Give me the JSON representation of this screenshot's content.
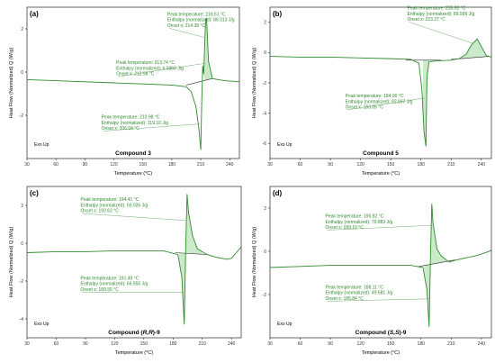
{
  "colors": {
    "curve": "#2e8b2e",
    "fill": "#b8e3b8",
    "baseline": "#2a2a2a",
    "annotation": "#2e8b2e"
  },
  "chart_data": [
    {
      "type": "line",
      "panel": "(a)",
      "compound_text": "Compound 3",
      "exo_label": "Exo Up",
      "xlabel": "Temperature   (°C)",
      "ylabel": "Heat Flow (Normalized) Q (W/g)",
      "xlim": [
        30,
        250
      ],
      "ylim": [
        -4,
        3
      ],
      "x_ticks": [
        "30",
        "60",
        "90",
        "120",
        "150",
        "180",
        "210",
        "240"
      ],
      "y_ticks": [
        "2",
        "0",
        "-2"
      ],
      "series": [
        {
          "x": [
            30,
            60,
            90,
            120,
            150,
            180,
            195,
            200,
            205,
            208,
            210,
            211,
            212,
            213,
            214,
            215,
            216,
            218,
            222,
            228,
            235,
            240,
            245,
            250
          ],
          "y": [
            -0.35,
            -0.4,
            -0.45,
            -0.5,
            -0.55,
            -0.6,
            -0.68,
            -0.9,
            -1.6,
            -2.6,
            -3.6,
            -1.4,
            0.3,
            -0.1,
            1.2,
            2.4,
            2.5,
            0.5,
            -0.3,
            -0.35,
            -0.4,
            -0.42,
            -0.43,
            -0.45
          ]
        }
      ],
      "annotations": [
        {
          "lines": [
            "Peak temperature: 216.51 °C",
            "Enthalpy (normalized): 86.313 J/g",
            "Onset x: 214.38 °C"
          ]
        },
        {
          "lines": [
            "Peak temperature: 213.74 °C",
            "Enthalpy (normalized): 6.5960 J/g",
            "Onset x: 212.58 °C"
          ]
        },
        {
          "lines": [
            "Peak temperature: 210.98 °C",
            "Enthalpy (normalized): 119.10 J/g",
            "Onset x: 206.04 °C"
          ]
        }
      ]
    },
    {
      "type": "line",
      "panel": "(b)",
      "compound_text": "Compound 5",
      "exo_label": "Exo Up",
      "xlabel": "Temperature   (°C)",
      "ylabel": "Heat Flow (Normalized) Q (W/g)",
      "xlim": [
        30,
        250
      ],
      "ylim": [
        -7,
        3
      ],
      "x_ticks": [
        "30",
        "60",
        "90",
        "120",
        "150",
        "180",
        "210",
        "240"
      ],
      "y_ticks": [
        "2",
        "0",
        "-2",
        "-4",
        "-6"
      ],
      "series": [
        {
          "x": [
            30,
            60,
            90,
            120,
            150,
            170,
            178,
            181,
            183,
            184.9,
            186,
            188,
            195,
            210,
            218,
            225,
            230,
            235.9,
            240,
            245,
            250
          ],
          "y": [
            -0.25,
            -0.3,
            -0.3,
            -0.35,
            -0.4,
            -0.45,
            -0.7,
            -2.5,
            -5.2,
            -6.2,
            -1.6,
            -0.6,
            -0.55,
            -0.5,
            -0.4,
            -0.1,
            0.5,
            0.9,
            0.4,
            -0.2,
            -0.3
          ]
        }
      ],
      "annotations": [
        {
          "lines": [
            "Peak temperature: 235.92 °C",
            "Enthalpy (normalized): 89.599 J/g",
            "Onset x: 223.27 °C"
          ]
        },
        {
          "lines": [
            "Peak temperature: 184.90 °C",
            "Enthalpy (normalized): 92.937 J/g",
            "Onset x: 183.05 °C"
          ]
        }
      ]
    },
    {
      "type": "line",
      "panel": "(c)",
      "compound_text": [
        "Compound (",
        "R,R",
        ")-9"
      ],
      "exo_label": "Exo Up",
      "xlabel": "Temperature   (°C)",
      "ylabel": "Heat Flow (Normalized) Q (W/g)",
      "xlim": [
        30,
        250
      ],
      "ylim": [
        -5,
        3
      ],
      "x_ticks": [
        "30",
        "60",
        "90",
        "120",
        "150",
        "180",
        "210",
        "240"
      ],
      "y_ticks": [
        "2",
        "0",
        "-2",
        "-4"
      ],
      "series": [
        {
          "x": [
            30,
            60,
            90,
            120,
            150,
            170,
            185,
            189,
            191.5,
            193,
            194.4,
            196,
            200,
            205,
            215,
            225,
            235,
            240,
            245,
            250
          ],
          "y": [
            -0.5,
            -0.45,
            -0.45,
            -0.4,
            -0.4,
            -0.4,
            -0.6,
            -1.8,
            -4.3,
            -0.3,
            2.6,
            1.6,
            0.4,
            -0.3,
            -0.6,
            -0.75,
            -0.85,
            -0.8,
            -0.5,
            -0.2
          ]
        }
      ],
      "annotations": [
        {
          "lines": [
            "Peak temperature: 194.41 °C",
            "Enthalpy (normalized): 59.026 J/g",
            "Onset x: 192.62 °C"
          ]
        },
        {
          "lines": [
            "Peak temperature: 191.49 °C",
            "Enthalpy (normalized): 66.555 J/g",
            "Onset x: 189.55 °C"
          ]
        }
      ]
    },
    {
      "type": "line",
      "panel": "(d)",
      "compound_text": [
        "Compound (",
        "S,S",
        ")-9"
      ],
      "exo_label": "Exo Up",
      "xlabel": "Temperature   (°C)",
      "ylabel": "Heat Flow (Normalized) Q (W/g)",
      "xlim": [
        30,
        250
      ],
      "ylim": [
        -4,
        3
      ],
      "x_ticks": [
        "30",
        "60",
        "90",
        "120",
        "150",
        "180",
        "210",
        "240"
      ],
      "y_ticks": [
        "2",
        "0",
        "-2"
      ],
      "series": [
        {
          "x": [
            30,
            60,
            90,
            120,
            150,
            170,
            182,
            186,
            188.1,
            189.5,
            190.8,
            192,
            196,
            200,
            208,
            215,
            225,
            235,
            245,
            250
          ],
          "y": [
            -0.75,
            -0.7,
            -0.65,
            -0.65,
            -0.65,
            -0.65,
            -0.75,
            -1.8,
            -3.5,
            -0.2,
            2.2,
            1.3,
            0.1,
            -0.2,
            -0.5,
            -0.4,
            -0.3,
            -0.2,
            -0.05,
            0.05
          ]
        }
      ],
      "annotations": [
        {
          "lines": [
            "Peak temperature: 190.82 °C",
            "Enthalpy (normalized): 79.883 J/g",
            "Onset x: 189.10 °C"
          ]
        },
        {
          "lines": [
            "Peak temperature: 188.11 °C",
            "Enthalpy (normalized): 49.581 J/g",
            "Onset x: 185.84 °C"
          ]
        }
      ]
    }
  ]
}
